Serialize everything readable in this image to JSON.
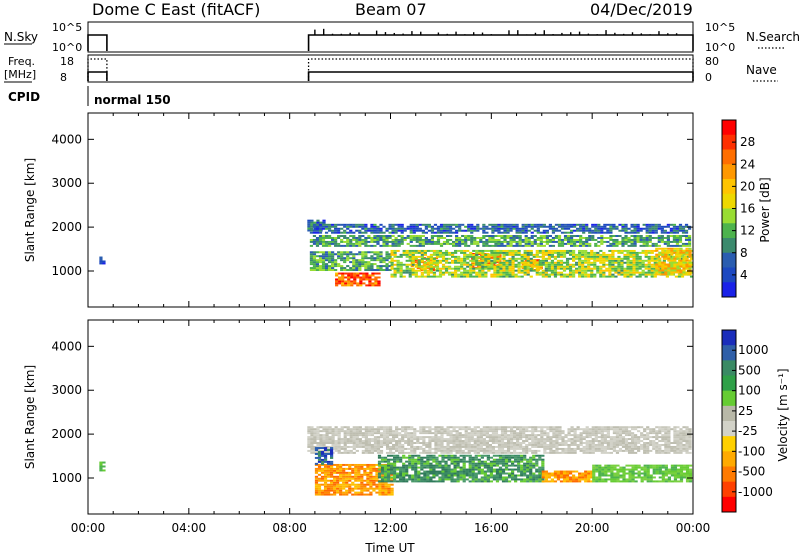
{
  "header": {
    "station": "Dome C East (fitACF)",
    "beam": "Beam 07",
    "date": "04/Dec/2019"
  },
  "status": {
    "nsky_label": "N.Sky",
    "nsky_ticks": [
      "10^5",
      "10^0"
    ],
    "nsearch_label": "N.Search",
    "nsearch_ticks": [
      "10^5",
      "10^0"
    ],
    "freq_label_1": "Freq.",
    "freq_label_2": "[MHz]",
    "freq_ticks": [
      "18",
      "8"
    ],
    "nave_label": "Nave",
    "nave_ticks": [
      "80",
      "0"
    ],
    "cpid_label": "CPID",
    "cpid_value": "normal 150",
    "nsky_segments": [
      {
        "from": "00:00",
        "to": "00:45",
        "level": "high"
      },
      {
        "from": "08:45",
        "to": "24:00",
        "level": "high"
      }
    ],
    "freq_segments": [
      {
        "from": "00:00",
        "to": "00:45"
      },
      {
        "from": "08:45",
        "to": "24:00"
      }
    ]
  },
  "chart_data": [
    {
      "type": "heatmap",
      "name": "power",
      "xlabel": "",
      "ylabel": "Slant Range [km]",
      "xlim": [
        0,
        24
      ],
      "ylim": [
        180,
        4600
      ],
      "y_ticks": [
        "4000",
        "3000",
        "2000",
        "1000"
      ],
      "y_tick_values": [
        4000,
        3000,
        2000,
        1000
      ],
      "colorbar_label": "Power [dB]",
      "colorbar_ticks": [
        "28",
        "24",
        "20",
        "16",
        "12",
        "8",
        "4"
      ],
      "colorbar_colors": [
        "#ff0000",
        "#ff3000",
        "#ff6e00",
        "#ff9800",
        "#ffc400",
        "#eed800",
        "#99dd33",
        "#4db34d",
        "#3b8a6d",
        "#2a5db0",
        "#1c48c0",
        "#1a22e8"
      ],
      "blobs": [
        {
          "t0": 0.45,
          "t1": 0.6,
          "r0": 1150,
          "r1": 1330,
          "level": 4
        },
        {
          "t0": 8.7,
          "t1": 9.3,
          "r0": 1900,
          "r1": 2150,
          "level": 5
        },
        {
          "t0": 8.8,
          "t1": 23.9,
          "r0": 1550,
          "r1": 1800,
          "level": 10
        },
        {
          "t0": 8.8,
          "t1": 23.9,
          "r0": 1850,
          "r1": 2050,
          "level": 5
        },
        {
          "t0": 8.8,
          "t1": 12.0,
          "r0": 1000,
          "r1": 1450,
          "level": 10
        },
        {
          "t0": 9.8,
          "t1": 11.5,
          "r0": 650,
          "r1": 950,
          "level": 25
        },
        {
          "t0": 12.8,
          "t1": 13.8,
          "r0": 1000,
          "r1": 1300,
          "level": 22
        },
        {
          "t0": 15.2,
          "t1": 16.3,
          "r0": 1050,
          "r1": 1400,
          "level": 24
        },
        {
          "t0": 17.2,
          "t1": 18.0,
          "r0": 1000,
          "r1": 1250,
          "level": 22
        },
        {
          "t0": 12.0,
          "t1": 23.9,
          "r0": 850,
          "r1": 1450,
          "level": 14
        },
        {
          "t0": 22.5,
          "t1": 23.9,
          "r0": 900,
          "r1": 1500,
          "level": 18
        }
      ]
    },
    {
      "type": "heatmap",
      "name": "velocity",
      "xlabel": "Time UT",
      "ylabel": "Slant Range [km]",
      "xlim": [
        0,
        24
      ],
      "ylim": [
        180,
        4600
      ],
      "x_ticks": [
        "00:00",
        "04:00",
        "08:00",
        "12:00",
        "16:00",
        "20:00",
        "00:00"
      ],
      "x_tick_values": [
        0,
        4,
        8,
        12,
        16,
        20,
        24
      ],
      "y_ticks": [
        "4000",
        "3000",
        "2000",
        "1000"
      ],
      "y_tick_values": [
        4000,
        3000,
        2000,
        1000
      ],
      "colorbar_label": "Velocity [m s⁻¹]",
      "colorbar_ticks": [
        "1000",
        "500",
        "100",
        "25",
        "-25",
        "-100",
        "-500",
        "-1000"
      ],
      "colorbar_colors": [
        "#1a2dbb",
        "#2f5fa8",
        "#3a8a64",
        "#2fa048",
        "#66cc33",
        "#b8b8a8",
        "#d2d2c8",
        "#ffd000",
        "#ffaa00",
        "#ff7a00",
        "#ff4000",
        "#ff0000"
      ],
      "blobs": [
        {
          "t0": 0.45,
          "t1": 0.6,
          "r0": 1150,
          "r1": 1350,
          "level": "green"
        },
        {
          "t0": 8.7,
          "t1": 23.9,
          "r0": 1550,
          "r1": 2150,
          "level": "gray"
        },
        {
          "t0": 9.0,
          "t1": 12.0,
          "r0": 600,
          "r1": 1300,
          "level": "orange"
        },
        {
          "t0": 11.5,
          "t1": 18.0,
          "r0": 900,
          "r1": 1500,
          "level": "teal"
        },
        {
          "t0": 18.0,
          "t1": 20.0,
          "r0": 900,
          "r1": 1150,
          "level": "orange"
        },
        {
          "t0": 20.0,
          "t1": 23.9,
          "r0": 900,
          "r1": 1300,
          "level": "lightgreen"
        },
        {
          "t0": 9.0,
          "t1": 9.6,
          "r0": 1300,
          "r1": 1700,
          "level": "blue"
        }
      ]
    }
  ]
}
